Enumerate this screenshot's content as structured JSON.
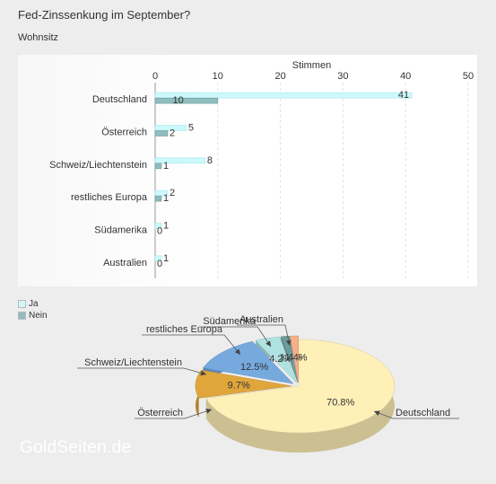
{
  "title": "Fed-Zinssenkung im September?",
  "subtitle": "Wohnsitz",
  "watermark": "GoldSeiten.de",
  "colors": {
    "ja_bar": "#ccf9fb",
    "nein_bar": "#8fbcbc",
    "pie": [
      "#fff0b8",
      "#e0a63c",
      "#76aadf",
      "#b0e2e2",
      "#6e9c9c",
      "#f3b08a"
    ]
  },
  "chart_data": [
    {
      "type": "bar",
      "orientation": "horizontal",
      "xlabel": "Stimmen",
      "xlim": [
        0,
        50
      ],
      "ticks": [
        0,
        10,
        20,
        30,
        40,
        50
      ],
      "grid": true,
      "legend_placement": "bottom-left",
      "categories": [
        "Deutschland",
        "Österreich",
        "Schweiz/Liechtenstein",
        "restliches Europa",
        "Südamerika",
        "Australien"
      ],
      "series": [
        {
          "name": "Ja",
          "values": [
            41,
            5,
            8,
            2,
            1,
            1
          ]
        },
        {
          "name": "Nein",
          "values": [
            10,
            2,
            1,
            1,
            0,
            0
          ]
        }
      ]
    },
    {
      "type": "pie",
      "style": "3d",
      "labels": [
        "Deutschland",
        "Österreich",
        "Schweiz/Liechtenstein",
        "restliches Europa",
        "Südamerika",
        "Australien"
      ],
      "values": [
        70.8,
        9.7,
        12.5,
        4.2,
        1.4,
        1.4
      ],
      "value_labels": [
        "70.8%",
        "9.7%",
        "12.5%",
        "4.2%",
        "1.4%",
        "1.4%"
      ]
    }
  ]
}
